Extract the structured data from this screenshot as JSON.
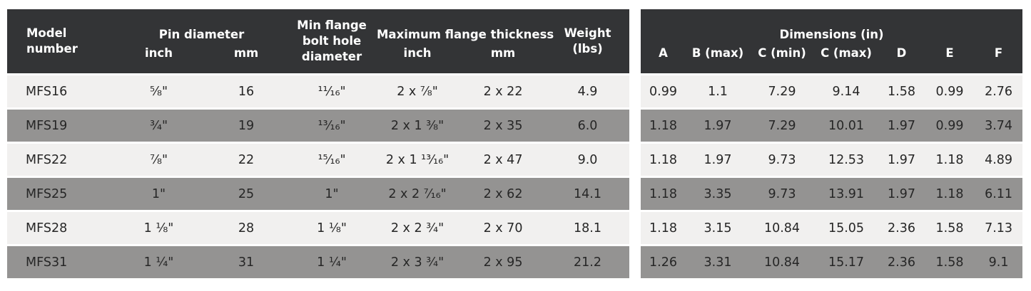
{
  "colors": {
    "header_bg": "#333436",
    "header_text": "#ffffff",
    "row_light_bg": "#f1f0ef",
    "row_gray_bg": "#949392",
    "body_text": "#262626",
    "separator": "#ffffff"
  },
  "left_table": {
    "headers": {
      "model": "Model number",
      "pin_group": "Pin diameter",
      "pin_inch": "inch",
      "pin_mm": "mm",
      "bolt_hole": "Min flange bolt hole diameter",
      "flange_group": "Maximum flange thickness",
      "flange_inch": "inch",
      "flange_mm": "mm",
      "weight": "Weight (lbs)"
    },
    "rows": [
      {
        "model": "MFS16",
        "pin_inch": "⅝\"",
        "pin_mm": "16",
        "bolt_hole": "¹¹⁄₁₆\"",
        "flange_inch": "2 x ⅞\"",
        "flange_mm": "2 x 22",
        "weight": "4.9"
      },
      {
        "model": "MFS19",
        "pin_inch": "¾\"",
        "pin_mm": "19",
        "bolt_hole": "¹³⁄₁₆\"",
        "flange_inch": "2 x 1 ⅜\"",
        "flange_mm": "2 x 35",
        "weight": "6.0"
      },
      {
        "model": "MFS22",
        "pin_inch": "⅞\"",
        "pin_mm": "22",
        "bolt_hole": "¹⁵⁄₁₆\"",
        "flange_inch": "2 x 1 ¹³⁄₁₆\"",
        "flange_mm": "2 x 47",
        "weight": "9.0"
      },
      {
        "model": "MFS25",
        "pin_inch": "1\"",
        "pin_mm": "25",
        "bolt_hole": "1\"",
        "flange_inch": "2 x 2 ⁷⁄₁₆\"",
        "flange_mm": "2 x 62",
        "weight": "14.1"
      },
      {
        "model": "MFS28",
        "pin_inch": "1 ⅛\"",
        "pin_mm": "28",
        "bolt_hole": "1 ⅛\"",
        "flange_inch": "2 x 2 ¾\"",
        "flange_mm": "2 x 70",
        "weight": "18.1"
      },
      {
        "model": "MFS31",
        "pin_inch": "1 ¼\"",
        "pin_mm": "31",
        "bolt_hole": "1 ¼\"",
        "flange_inch": "2 x 3 ¾\"",
        "flange_mm": "2 x 95",
        "weight": "21.2"
      }
    ]
  },
  "right_table": {
    "title": "Dimensions (in)",
    "columns": [
      "A",
      "B (max)",
      "C (min)",
      "C (max)",
      "D",
      "E",
      "F"
    ],
    "rows": [
      [
        "0.99",
        "1.1",
        "7.29",
        "9.14",
        "1.58",
        "0.99",
        "2.76"
      ],
      [
        "1.18",
        "1.97",
        "7.29",
        "10.01",
        "1.97",
        "0.99",
        "3.74"
      ],
      [
        "1.18",
        "1.97",
        "9.73",
        "12.53",
        "1.97",
        "1.18",
        "4.89"
      ],
      [
        "1.18",
        "3.35",
        "9.73",
        "13.91",
        "1.97",
        "1.18",
        "6.11"
      ],
      [
        "1.18",
        "3.15",
        "10.84",
        "15.05",
        "2.36",
        "1.58",
        "7.13"
      ],
      [
        "1.26",
        "3.31",
        "10.84",
        "15.17",
        "2.36",
        "1.58",
        "9.1"
      ]
    ]
  }
}
